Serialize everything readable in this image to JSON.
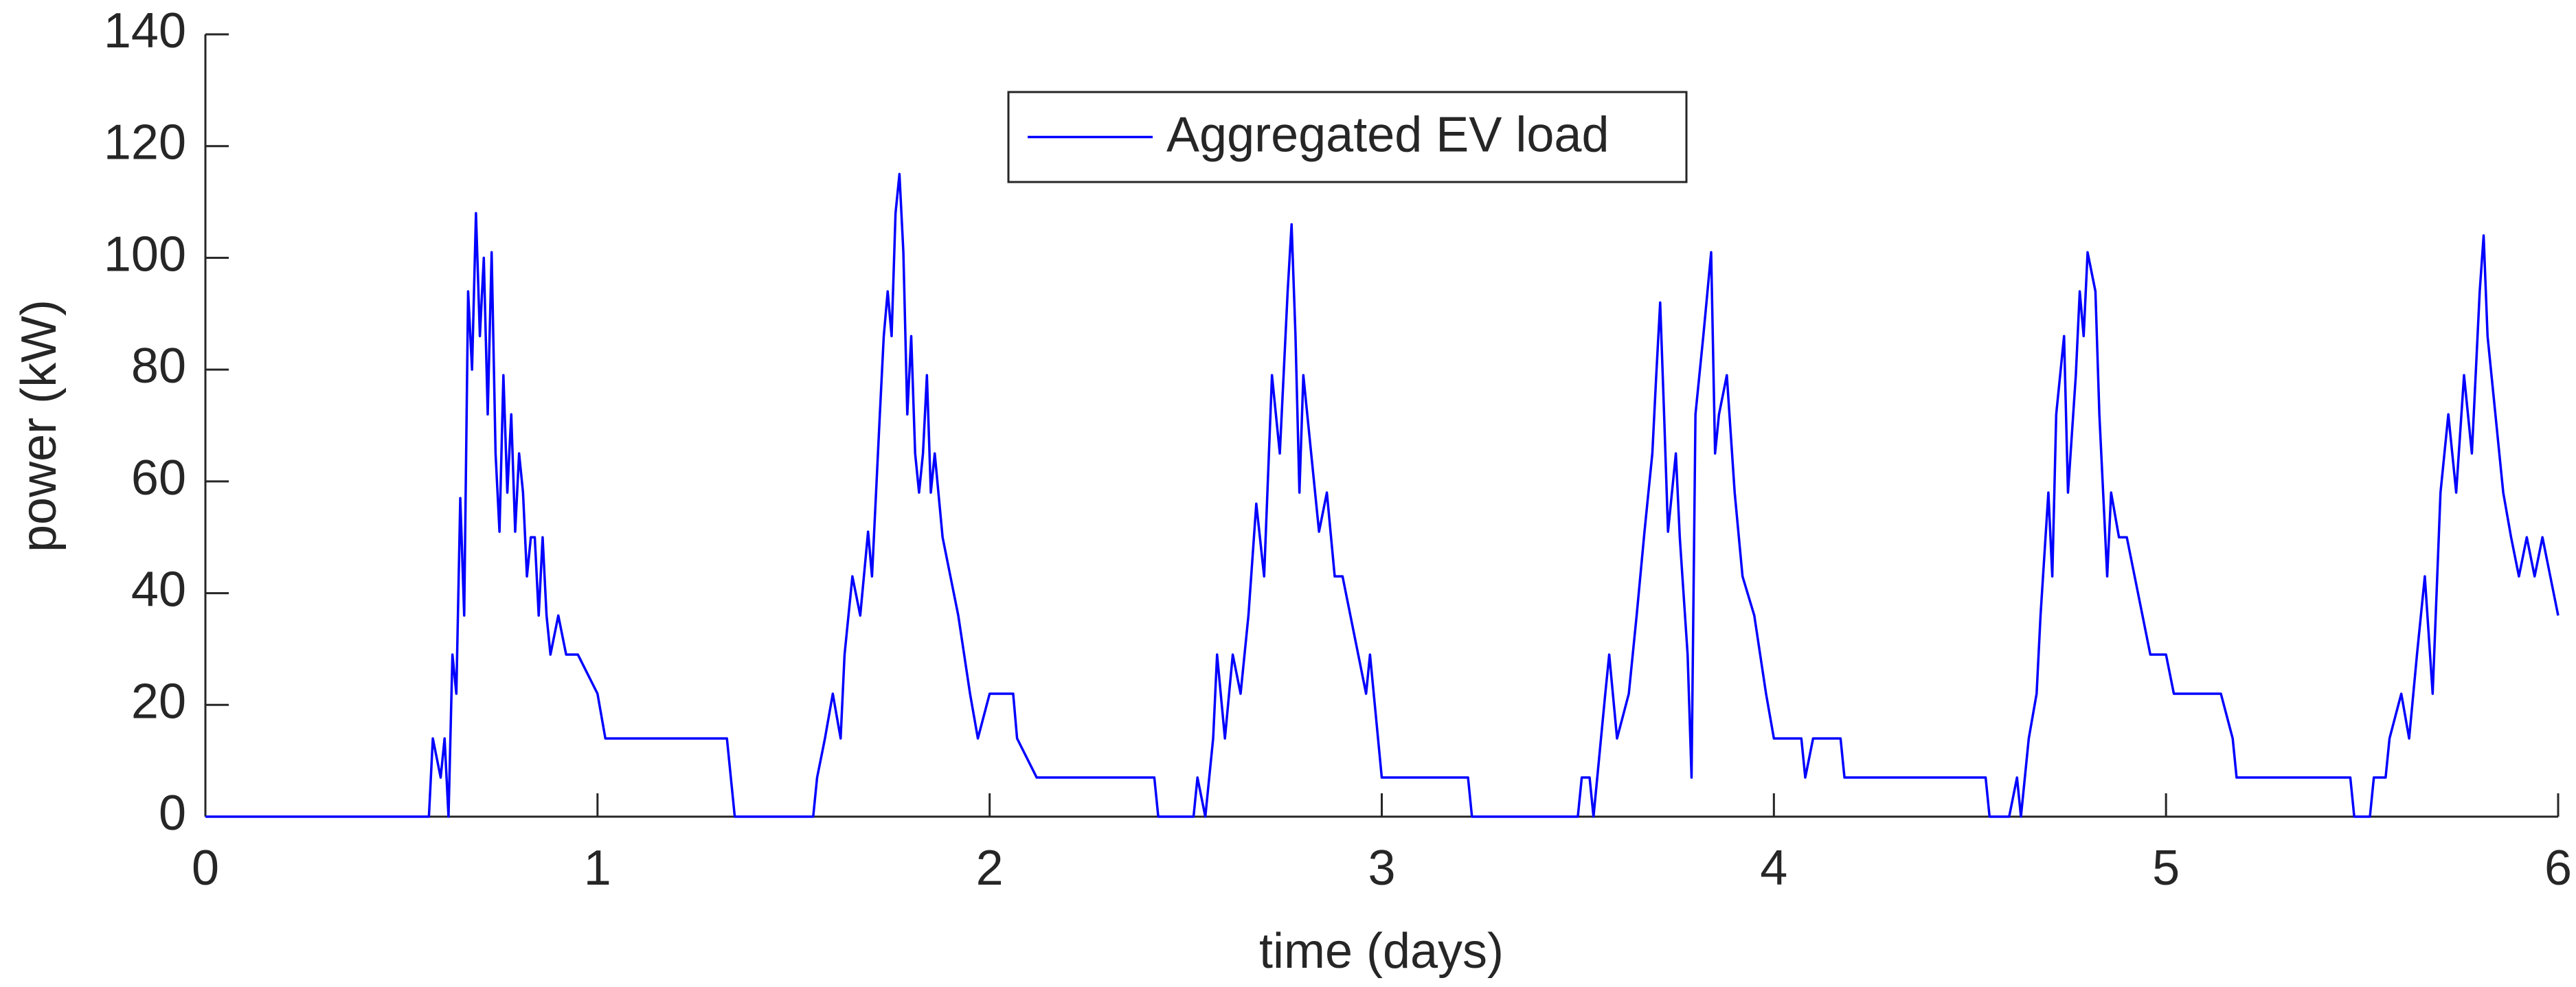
{
  "chart_data": {
    "type": "line",
    "xlabel": "time (days)",
    "ylabel": "power (kW)",
    "xlim": [
      0,
      6
    ],
    "xticks": [
      0,
      1,
      2,
      3,
      4,
      5,
      6
    ],
    "ylim": [
      0,
      140
    ],
    "yticks": [
      0,
      20,
      40,
      60,
      80,
      100,
      120,
      140
    ],
    "grid": false,
    "legend": "top",
    "x": [
      0,
      0.57,
      0.58,
      0.6,
      0.61,
      0.62,
      0.63,
      0.64,
      0.65,
      0.66,
      0.67,
      0.68,
      0.69,
      0.7,
      0.71,
      0.72,
      0.73,
      0.74,
      0.75,
      0.76,
      0.77,
      0.78,
      0.79,
      0.8,
      0.81,
      0.82,
      0.83,
      0.84,
      0.85,
      0.86,
      0.87,
      0.88,
      0.9,
      0.92,
      0.95,
      1.0,
      1.02,
      1.33,
      1.34,
      1.35,
      1.55,
      1.56,
      1.58,
      1.6,
      1.62,
      1.63,
      1.65,
      1.67,
      1.69,
      1.7,
      1.72,
      1.73,
      1.74,
      1.75,
      1.76,
      1.77,
      1.78,
      1.79,
      1.8,
      1.81,
      1.82,
      1.83,
      1.84,
      1.85,
      1.86,
      1.88,
      1.9,
      1.92,
      1.95,
      1.97,
      2.0,
      2.06,
      2.07,
      2.12,
      2.42,
      2.43,
      2.52,
      2.53,
      2.55,
      2.57,
      2.58,
      2.6,
      2.62,
      2.64,
      2.66,
      2.68,
      2.7,
      2.72,
      2.74,
      2.76,
      2.77,
      2.78,
      2.79,
      2.8,
      2.82,
      2.84,
      2.86,
      2.88,
      2.9,
      2.92,
      2.94,
      2.96,
      2.97,
      3.0,
      3.22,
      3.23,
      3.5,
      3.51,
      3.53,
      3.54,
      3.57,
      3.58,
      3.6,
      3.63,
      3.65,
      3.67,
      3.69,
      3.7,
      3.71,
      3.72,
      3.73,
      3.75,
      3.76,
      3.78,
      3.79,
      3.8,
      3.82,
      3.84,
      3.85,
      3.86,
      3.88,
      3.9,
      3.92,
      3.95,
      3.98,
      4.0,
      4.07,
      4.08,
      4.1,
      4.17,
      4.18,
      4.54,
      4.55,
      4.6,
      4.62,
      4.63,
      4.65,
      4.67,
      4.68,
      4.7,
      4.71,
      4.72,
      4.74,
      4.75,
      4.77,
      4.78,
      4.79,
      4.8,
      4.82,
      4.83,
      4.85,
      4.86,
      4.88,
      4.9,
      4.92,
      4.94,
      4.96,
      5.0,
      5.02,
      5.14,
      5.17,
      5.18,
      5.47,
      5.48,
      5.52,
      5.53,
      5.56,
      5.57,
      5.6,
      5.62,
      5.64,
      5.66,
      5.68,
      5.7,
      5.72,
      5.74,
      5.76,
      5.78,
      5.8,
      5.81,
      5.82,
      5.84,
      5.86,
      5.88,
      5.9,
      5.92,
      5.94,
      5.96,
      5.98,
      6.0
    ],
    "series": [
      {
        "name": "Aggregated EV load",
        "color": "#0000ff",
        "values": [
          0,
          0,
          14,
          7,
          14,
          0,
          29,
          22,
          57,
          36,
          94,
          80,
          108,
          86,
          100,
          72,
          101,
          65,
          51,
          79,
          58,
          72,
          51,
          65,
          58,
          43,
          50,
          50,
          36,
          50,
          36,
          29,
          36,
          29,
          29,
          22,
          14,
          14,
          7,
          0,
          0,
          7,
          14,
          22,
          14,
          29,
          43,
          36,
          51,
          43,
          72,
          86,
          94,
          86,
          108,
          115,
          101,
          72,
          86,
          65,
          58,
          65,
          79,
          58,
          65,
          50,
          43,
          36,
          22,
          14,
          22,
          22,
          14,
          7,
          7,
          0,
          0,
          7,
          0,
          14,
          29,
          14,
          29,
          22,
          36,
          56,
          43,
          79,
          65,
          94,
          106,
          86,
          58,
          79,
          65,
          51,
          58,
          43,
          43,
          36,
          29,
          22,
          29,
          7,
          7,
          0,
          0,
          7,
          7,
          0,
          22,
          29,
          14,
          22,
          36,
          51,
          65,
          79,
          92,
          72,
          51,
          65,
          50,
          29,
          7,
          72,
          86,
          101,
          65,
          72,
          79,
          58,
          43,
          36,
          22,
          14,
          14,
          7,
          14,
          14,
          7,
          7,
          0,
          0,
          7,
          0,
          14,
          22,
          36,
          58,
          43,
          72,
          86,
          58,
          79,
          94,
          86,
          101,
          94,
          72,
          43,
          58,
          50,
          50,
          43,
          36,
          29,
          29,
          22,
          22,
          14,
          7,
          7,
          0,
          0,
          7,
          7,
          14,
          22,
          14,
          29,
          43,
          22,
          58,
          72,
          58,
          79,
          65,
          94,
          104,
          86,
          72,
          58,
          50,
          43,
          50,
          43,
          50,
          43,
          36
        ]
      }
    ]
  }
}
